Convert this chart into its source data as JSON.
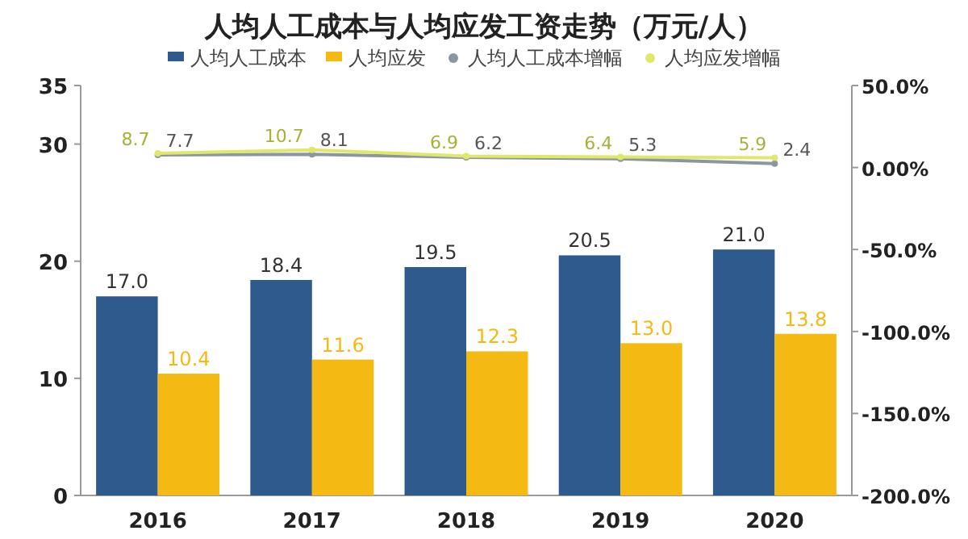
{
  "chart_data": {
    "type": "bar",
    "title": "人均人工成本与人均应发工资走势（万元/人）",
    "categories": [
      "2016",
      "2017",
      "2018",
      "2019",
      "2020"
    ],
    "series": [
      {
        "name": "人均人工成本",
        "color": "#2e5a8e",
        "values": [
          17.0,
          18.4,
          19.5,
          20.5,
          21.0
        ],
        "value_labels": [
          "17.0",
          "18.4",
          "19.5",
          "20.5",
          "21.0"
        ]
      },
      {
        "name": "人均应发",
        "color": "#f5b914",
        "values": [
          10.4,
          11.6,
          12.3,
          13.0,
          13.8
        ],
        "value_labels": [
          "10.4",
          "11.6",
          "12.3",
          "13.0",
          "13.8"
        ]
      },
      {
        "name": "人均人工成本增幅",
        "type": "line",
        "axis": "y2",
        "color": "#8c96a3",
        "values": [
          7.7,
          8.1,
          6.2,
          5.3,
          2.4
        ]
      },
      {
        "name": "人均应发增幅",
        "type": "line",
        "axis": "y2",
        "color": "#dfe86a",
        "values": [
          8.7,
          10.7,
          6.9,
          6.4,
          5.9
        ]
      }
    ],
    "ylim": [
      0,
      35
    ],
    "yticks": [
      0,
      10,
      20,
      30,
      35
    ],
    "y2lim": [
      -200,
      50
    ],
    "y2ticks": [
      {
        "value": 50,
        "label": "50.0%"
      },
      {
        "value": 0,
        "label": "0.00%"
      },
      {
        "value": -50,
        "label": "-50.0%"
      },
      {
        "value": -100,
        "label": "-100.0%"
      },
      {
        "value": -150,
        "label": "-150.0%"
      },
      {
        "value": -200,
        "label": "-200.0%"
      }
    ],
    "data_labels": true,
    "legend": "top",
    "marker": "circle",
    "grid": false
  }
}
